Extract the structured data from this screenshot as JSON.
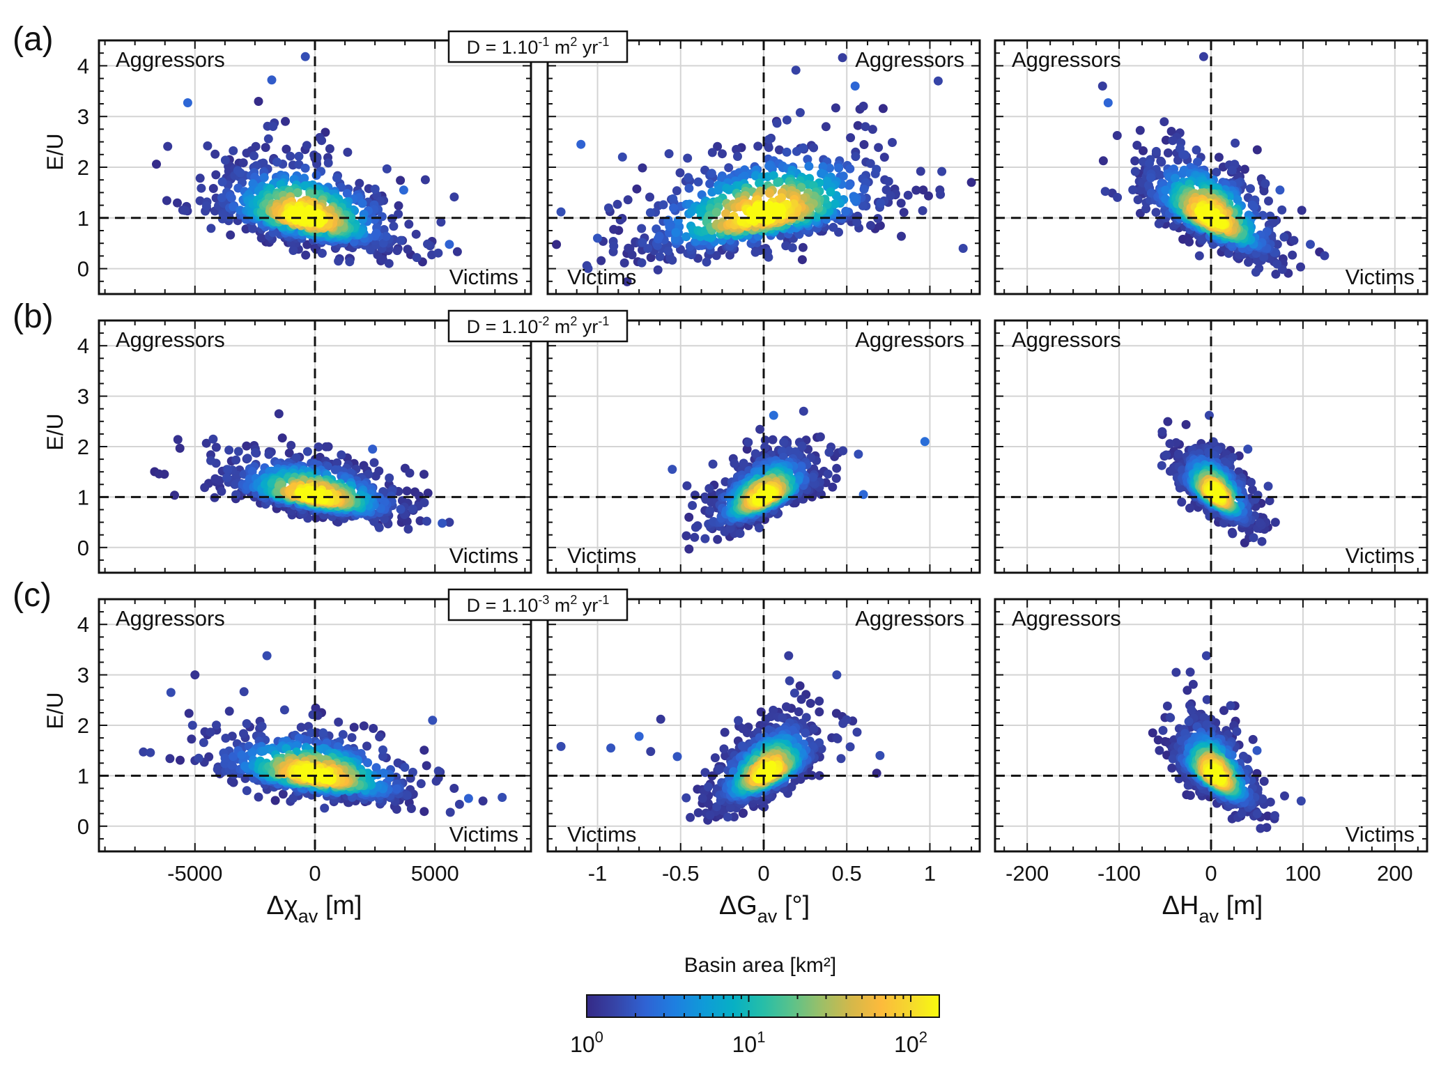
{
  "panel_letters": [
    "(a)",
    "(b)",
    "(c)"
  ],
  "diffusivity_labels": [
    {
      "prefix": "D = 1.10",
      "exponent": "-1",
      "mid": " m",
      "unit_exp": "2",
      "suffix": " yr",
      "suffix_exp": "-1"
    },
    {
      "prefix": "D = 1.10",
      "exponent": "-2",
      "mid": " m",
      "unit_exp": "2",
      "suffix": " yr",
      "suffix_exp": "-1"
    },
    {
      "prefix": "D = 1.10",
      "exponent": "-3",
      "mid": " m",
      "unit_exp": "2",
      "suffix": " yr",
      "suffix_exp": "-1"
    }
  ],
  "quadrant_labels": {
    "aggressors": "Aggressors",
    "victims": "Victims"
  },
  "colorbar": {
    "title": "Basin area [km²]",
    "scale": "log",
    "range": [
      1,
      150
    ],
    "ticks": [
      {
        "base": "10",
        "exp": "0",
        "value": 1
      },
      {
        "base": "10",
        "exp": "1",
        "value": 10
      },
      {
        "base": "10",
        "exp": "2",
        "value": 100
      }
    ],
    "colors": [
      "#352a87",
      "#3645a8",
      "#2f63d4",
      "#1e7fe0",
      "#0f9bd8",
      "#07b0c4",
      "#26bea8",
      "#5cc28a",
      "#9dbf67",
      "#d4b84a",
      "#fcba3c",
      "#f5d82e",
      "#f9fb0e"
    ]
  },
  "chart_data": [
    {
      "id": "a-chi",
      "type": "scatter",
      "row": "(a)",
      "xlabel": {
        "sym": "Δχ",
        "sub": "av",
        "unit": " [m]"
      },
      "ylabel": "E/U",
      "xlim": [
        -9000,
        9000
      ],
      "ylim": [
        -0.5,
        4.5
      ],
      "xticks": [
        -5000,
        0,
        5000
      ],
      "xtick_labels": [
        "-5000",
        "0",
        "5000"
      ],
      "yticks": [
        0,
        1,
        2,
        3,
        4
      ],
      "grid": true,
      "reference_lines": {
        "x": 0,
        "y": 1
      },
      "cloud": {
        "x_center": -400,
        "x_spread": 2100,
        "y_at_center": 1.0,
        "slope": -9e-05,
        "y_spread": 0.38,
        "outliers": [
          [
            -5300,
            3.27
          ],
          [
            -400,
            4.18
          ],
          [
            -1800,
            3.72
          ],
          [
            5600,
            0.48
          ],
          [
            3700,
            1.55
          ],
          [
            4800,
            0.45
          ]
        ]
      }
    },
    {
      "id": "a-g",
      "type": "scatter",
      "row": "(a)",
      "xlabel": {
        "sym": "ΔG",
        "sub": "av",
        "unit": " [°]"
      },
      "ylabel": "E/U",
      "xlim": [
        -1.3,
        1.3
      ],
      "ylim": [
        -0.5,
        4.5
      ],
      "xticks": [
        -1,
        -0.5,
        0,
        0.5,
        1
      ],
      "xtick_labels": [
        "-1",
        "-0.5",
        "0",
        "0.5",
        "1"
      ],
      "yticks": [
        0,
        1,
        2,
        3,
        4
      ],
      "grid": true,
      "reference_lines": {
        "x": 0,
        "y": 1
      },
      "cloud": {
        "x_center": 0.0,
        "x_spread": 0.42,
        "y_at_center": 1.05,
        "slope": 0.6,
        "y_spread": 0.45,
        "outliers": [
          [
            -1.22,
            1.12
          ],
          [
            -1.1,
            2.45
          ],
          [
            -0.85,
            2.2
          ],
          [
            1.05,
            3.7
          ],
          [
            1.25,
            1.7
          ],
          [
            1.2,
            0.4
          ],
          [
            -1.0,
            0.6
          ],
          [
            0.55,
            3.6
          ]
        ]
      }
    },
    {
      "id": "a-h",
      "type": "scatter",
      "row": "(a)",
      "xlabel": {
        "sym": "ΔH",
        "sub": "av",
        "unit": " [m]"
      },
      "ylabel": "E/U",
      "xlim": [
        -235,
        235
      ],
      "ylim": [
        -0.5,
        4.5
      ],
      "xticks": [
        -200,
        -100,
        0,
        100,
        200
      ],
      "xtick_labels": [
        "-200",
        "-100",
        "0",
        "100",
        "200"
      ],
      "yticks": [
        0,
        1,
        2,
        3,
        4
      ],
      "grid": true,
      "reference_lines": {
        "x": 0,
        "y": 1
      },
      "cloud": {
        "x_center": 0,
        "x_spread": 40,
        "y_at_center": 1.0,
        "slope": -0.0085,
        "y_spread": 0.38,
        "outliers": [
          [
            -118,
            3.6
          ],
          [
            -112,
            3.27
          ],
          [
            -8,
            4.18
          ],
          [
            118,
            0.33
          ],
          [
            108,
            0.48
          ],
          [
            75,
            1.55
          ]
        ]
      }
    },
    {
      "id": "b-chi",
      "type": "scatter",
      "row": "(b)",
      "xlabel": {
        "sym": "Δχ",
        "sub": "av",
        "unit": " [m]"
      },
      "ylabel": "E/U",
      "xlim": [
        -9000,
        9000
      ],
      "ylim": [
        -0.5,
        4.5
      ],
      "xticks": [
        -5000,
        0,
        5000
      ],
      "xtick_labels": [
        "-5000",
        "0",
        "5000"
      ],
      "yticks": [
        0,
        1,
        2,
        3,
        4
      ],
      "grid": true,
      "reference_lines": {
        "x": 0,
        "y": 1
      },
      "cloud": {
        "x_center": 0,
        "x_spread": 2000,
        "y_at_center": 1.02,
        "slope": -8e-05,
        "y_spread": 0.25,
        "outliers": [
          [
            -1500,
            2.65
          ],
          [
            2400,
            1.95
          ],
          [
            5600,
            0.5
          ],
          [
            5300,
            0.48
          ],
          [
            -300,
            0.58
          ]
        ]
      }
    },
    {
      "id": "b-g",
      "type": "scatter",
      "row": "(b)",
      "xlabel": {
        "sym": "ΔG",
        "sub": "av",
        "unit": " [°]"
      },
      "ylabel": "E/U",
      "xlim": [
        -1.3,
        1.3
      ],
      "ylim": [
        -0.5,
        4.5
      ],
      "xticks": [
        -1,
        -0.5,
        0,
        0.5,
        1
      ],
      "xtick_labels": [
        "-1",
        "-0.5",
        "0",
        "0.5",
        "1"
      ],
      "yticks": [
        0,
        1,
        2,
        3,
        4
      ],
      "grid": true,
      "reference_lines": {
        "x": 0,
        "y": 1
      },
      "cloud": {
        "x_center": 0.0,
        "x_spread": 0.17,
        "y_at_center": 1.0,
        "slope": 1.4,
        "y_spread": 0.28,
        "outliers": [
          [
            0.97,
            2.1
          ],
          [
            0.57,
            1.85
          ],
          [
            0.06,
            2.62
          ],
          [
            -0.55,
            1.55
          ],
          [
            0.6,
            1.05
          ],
          [
            -0.45,
            0.6
          ]
        ]
      }
    },
    {
      "id": "b-h",
      "type": "scatter",
      "row": "(b)",
      "xlabel": {
        "sym": "ΔH",
        "sub": "av",
        "unit": " [m]"
      },
      "ylabel": "E/U",
      "xlim": [
        -235,
        235
      ],
      "ylim": [
        -0.5,
        4.5
      ],
      "xticks": [
        -200,
        -100,
        0,
        100,
        200
      ],
      "xtick_labels": [
        "-200",
        "-100",
        "0",
        "100",
        "200"
      ],
      "yticks": [
        0,
        1,
        2,
        3,
        4
      ],
      "grid": true,
      "reference_lines": {
        "x": 0,
        "y": 1
      },
      "cloud": {
        "x_center": 5,
        "x_spread": 22,
        "y_at_center": 1.05,
        "slope": -0.011,
        "y_spread": 0.27,
        "outliers": [
          [
            -2,
            2.62
          ],
          [
            40,
            1.95
          ],
          [
            70,
            0.5
          ],
          [
            30,
            1.5
          ]
        ]
      }
    },
    {
      "id": "c-chi",
      "type": "scatter",
      "row": "(c)",
      "xlabel": {
        "sym": "Δχ",
        "sub": "av",
        "unit": " [m]"
      },
      "ylabel": "E/U",
      "xlim": [
        -9000,
        9000
      ],
      "ylim": [
        -0.5,
        4.5
      ],
      "xticks": [
        -5000,
        0,
        5000
      ],
      "xtick_labels": [
        "-5000",
        "0",
        "5000"
      ],
      "yticks": [
        0,
        1,
        2,
        3,
        4
      ],
      "grid": true,
      "reference_lines": {
        "x": 0,
        "y": 1
      },
      "cloud": {
        "x_center": 0,
        "x_spread": 2300,
        "y_at_center": 1.0,
        "slope": -7e-05,
        "y_spread": 0.3,
        "outliers": [
          [
            -6000,
            2.65
          ],
          [
            -5000,
            3.0
          ],
          [
            -5100,
            2.0
          ],
          [
            -2000,
            3.38
          ],
          [
            4900,
            2.1
          ],
          [
            6400,
            0.55
          ],
          [
            7000,
            0.5
          ],
          [
            7800,
            0.57
          ],
          [
            5800,
            0.75
          ]
        ]
      }
    },
    {
      "id": "c-g",
      "type": "scatter",
      "row": "(c)",
      "xlabel": {
        "sym": "ΔG",
        "sub": "av",
        "unit": " [°]"
      },
      "ylabel": "E/U",
      "xlim": [
        -1.3,
        1.3
      ],
      "ylim": [
        -0.5,
        4.5
      ],
      "xticks": [
        -1,
        -0.5,
        0,
        0.5,
        1
      ],
      "xtick_labels": [
        "-1",
        "-0.5",
        "0",
        "0.5",
        "1"
      ],
      "yticks": [
        0,
        1,
        2,
        3,
        4
      ],
      "grid": true,
      "reference_lines": {
        "x": 0,
        "y": 1
      },
      "cloud": {
        "x_center": 0.02,
        "x_spread": 0.17,
        "y_at_center": 1.05,
        "slope": 1.5,
        "y_spread": 0.32,
        "outliers": [
          [
            -1.22,
            1.58
          ],
          [
            -0.92,
            1.55
          ],
          [
            -0.75,
            1.78
          ],
          [
            -0.62,
            2.12
          ],
          [
            -0.68,
            1.48
          ],
          [
            -0.52,
            1.38
          ],
          [
            0.7,
            1.4
          ],
          [
            0.68,
            1.05
          ],
          [
            0.44,
            3.0
          ],
          [
            0.15,
            3.38
          ]
        ]
      }
    },
    {
      "id": "c-h",
      "type": "scatter",
      "row": "(c)",
      "xlabel": {
        "sym": "ΔH",
        "sub": "av",
        "unit": " [m]"
      },
      "ylabel": "E/U",
      "xlim": [
        -235,
        235
      ],
      "ylim": [
        -0.5,
        4.5
      ],
      "xticks": [
        -200,
        -100,
        0,
        100,
        200
      ],
      "xtick_labels": [
        "-200",
        "-100",
        "0",
        "100",
        "200"
      ],
      "yticks": [
        0,
        1,
        2,
        3,
        4
      ],
      "grid": true,
      "reference_lines": {
        "x": 0,
        "y": 1
      },
      "cloud": {
        "x_center": 5,
        "x_spread": 24,
        "y_at_center": 1.0,
        "slope": -0.011,
        "y_spread": 0.32,
        "outliers": [
          [
            -5,
            3.38
          ],
          [
            -38,
            3.05
          ],
          [
            98,
            0.5
          ],
          [
            80,
            0.6
          ],
          [
            50,
            1.5
          ]
        ]
      }
    }
  ]
}
